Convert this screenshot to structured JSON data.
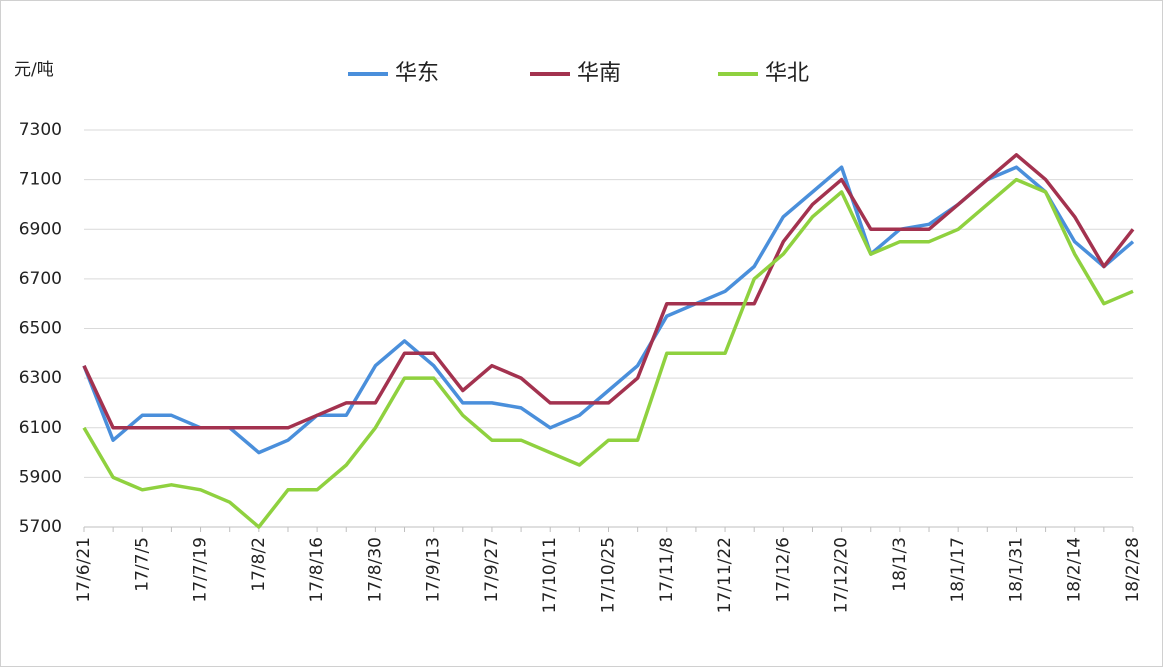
{
  "chart_data": {
    "type": "line",
    "y_unit_label": "元/吨",
    "categories": [
      "17/6/21",
      null,
      "17/7/5",
      null,
      "17/7/19",
      null,
      "17/8/2",
      null,
      "17/8/16",
      null,
      "17/8/30",
      null,
      "17/9/13",
      null,
      "17/9/27",
      null,
      "17/10/11",
      null,
      "17/10/25",
      null,
      "17/11/8",
      null,
      "17/11/22",
      null,
      "17/12/6",
      null,
      "17/12/20",
      null,
      "18/1/3",
      null,
      "18/1/17",
      null,
      "18/1/31",
      null,
      "18/2/14",
      null,
      "18/2/28"
    ],
    "series": [
      {
        "name": "华东",
        "color": "#4a8fdb",
        "values": [
          6350,
          6050,
          6150,
          6150,
          6100,
          6100,
          6000,
          6050,
          6150,
          6150,
          6350,
          6450,
          6350,
          6200,
          6200,
          6180,
          6100,
          6150,
          6250,
          6350,
          6550,
          6600,
          6650,
          6750,
          6950,
          7050,
          7150,
          6800,
          6900,
          6920,
          7000,
          7100,
          7150,
          7050,
          6850,
          6750,
          6850
        ]
      },
      {
        "name": "华南",
        "color": "#a3324f",
        "values": [
          6350,
          6100,
          6100,
          6100,
          6100,
          6100,
          6100,
          6100,
          6150,
          6200,
          6200,
          6400,
          6400,
          6250,
          6350,
          6300,
          6200,
          6200,
          6200,
          6300,
          6600,
          6600,
          6600,
          6600,
          6850,
          7000,
          7100,
          6900,
          6900,
          6900,
          7000,
          7100,
          7200,
          7100,
          6950,
          6750,
          6900
        ]
      },
      {
        "name": "华北",
        "color": "#8fd13f",
        "values": [
          6100,
          5900,
          5850,
          5870,
          5850,
          5800,
          5700,
          5850,
          5850,
          5950,
          6100,
          6300,
          6300,
          6150,
          6050,
          6050,
          6000,
          5950,
          6050,
          6050,
          6400,
          6400,
          6400,
          6700,
          6800,
          6950,
          7050,
          6800,
          6850,
          6850,
          6900,
          7000,
          7100,
          7050,
          6800,
          6600,
          6650
        ]
      }
    ],
    "ylim": [
      5700,
      7300
    ],
    "yticks": [
      5700,
      5900,
      6100,
      6300,
      6500,
      6700,
      6900,
      7100,
      7300
    ],
    "grid": true
  }
}
